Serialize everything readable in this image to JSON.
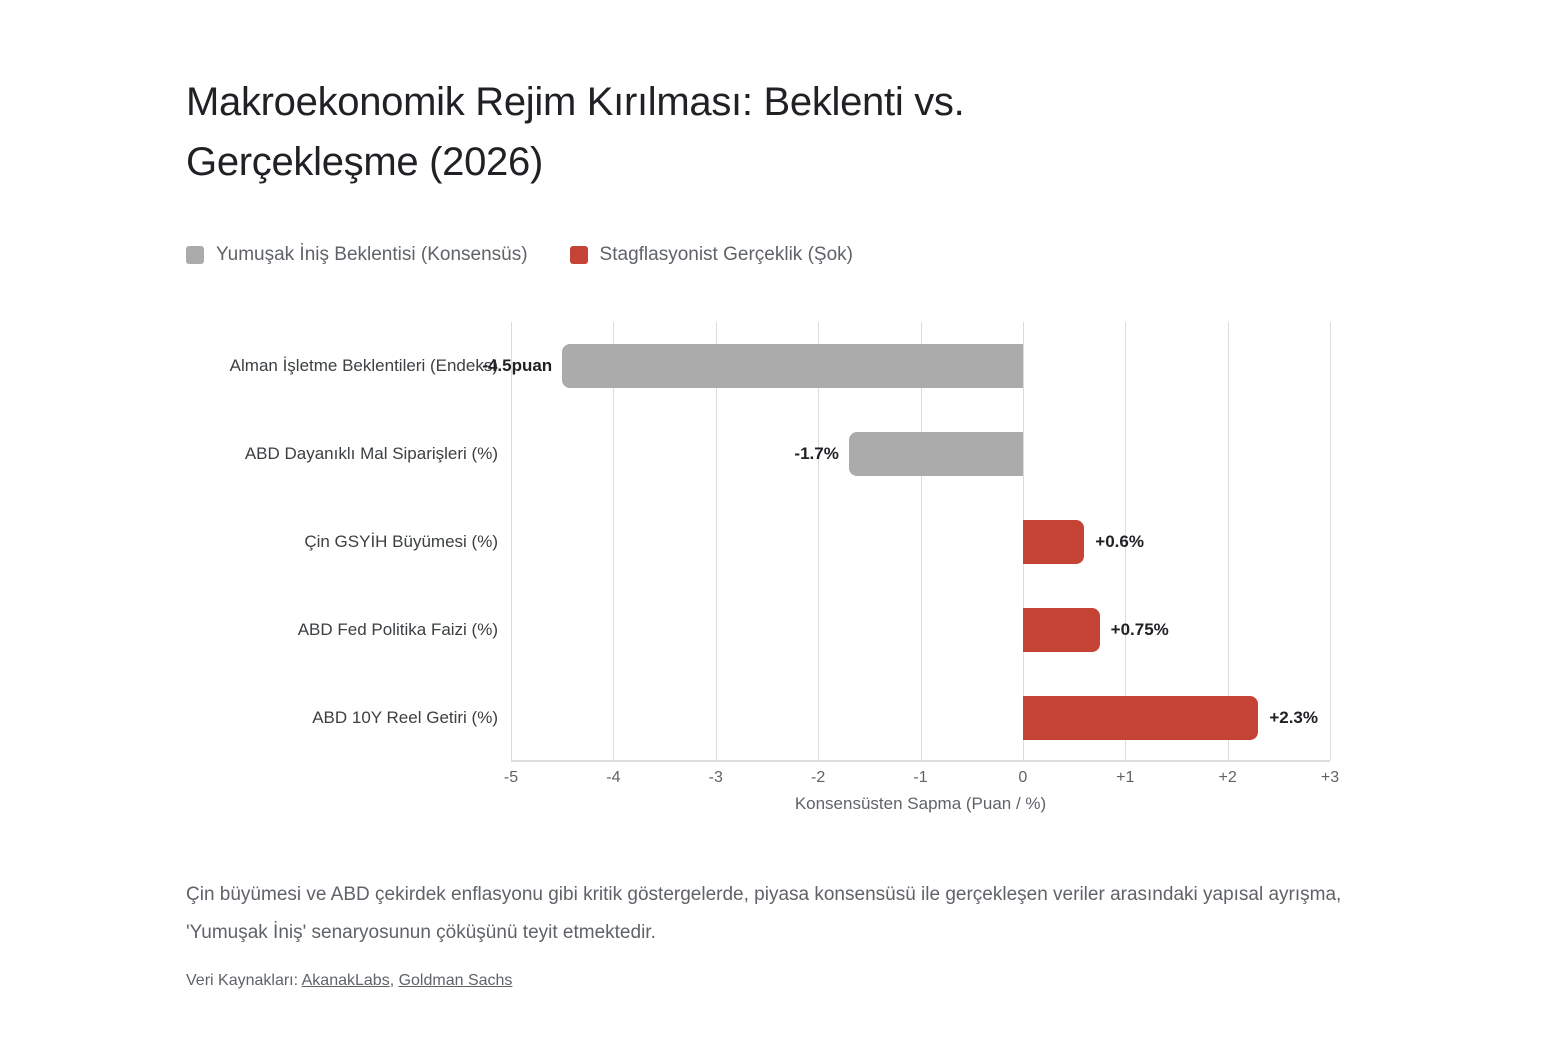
{
  "page": {
    "title": "Makroekonomik Rejim Kırılması: Beklenti vs. Gerçekleşme (2026)",
    "description": "Çin büyümesi ve ABD çekirdek enflasyonu gibi kritik göstergelerde, piyasa konsensüsü ile gerçekleşen veriler arasındaki yapısal ayrışma, 'Yumuşak İniş' senaryosunun çöküşünü teyit etmektedir.",
    "sources_label": "Veri Kaynakları: ",
    "sources_separator": ", ",
    "sources": [
      {
        "label": "AkanakLabs"
      },
      {
        "label": "Goldman Sachs"
      }
    ]
  },
  "chart_data": {
    "type": "bar",
    "orientation": "horizontal",
    "title": "Makroekonomik Rejim Kırılması: Beklenti vs. Gerçekleşme (2026)",
    "xlabel": "Konsensüsten Sapma (Puan / %)",
    "xlim": [
      -5,
      3
    ],
    "grid": true,
    "legend_position": "top",
    "series": [
      {
        "name": "Yumuşak İniş Beklentisi (Konsensüs)",
        "color": "#ababab"
      },
      {
        "name": "Stagflasyonist Gerçeklik (Şok)",
        "color": "#c54334"
      }
    ],
    "legend": [
      {
        "label": "Yumuşak İniş Beklentisi (Konsensüs)",
        "color": "#ababab"
      },
      {
        "label": "Stagflasyonist Gerçeklik (Şok)",
        "color": "#c54334"
      }
    ],
    "categories": [
      "Alman İşletme Beklentileri (Endeks)",
      "ABD Dayanıklı Mal Siparişleri (%)",
      "Çin GSYİH Büyümesi (%)",
      "ABD Fed Politika Faizi (%)",
      "ABD 10Y Reel Getiri (%)"
    ],
    "bars": [
      {
        "category": "Alman İşletme Beklentileri (Endeks)",
        "value": -4.5,
        "label": "-4.5puan",
        "series": 0
      },
      {
        "category": "ABD Dayanıklı Mal Siparişleri (%)",
        "value": -1.7,
        "label": "-1.7%",
        "series": 0
      },
      {
        "category": "Çin GSYİH Büyümesi (%)",
        "value": 0.6,
        "label": "+0.6%",
        "series": 1
      },
      {
        "category": "ABD Fed Politika Faizi (%)",
        "value": 0.75,
        "label": "+0.75%",
        "series": 1
      },
      {
        "category": "ABD 10Y Reel Getiri (%)",
        "value": 2.3,
        "label": "+2.3%",
        "series": 1
      }
    ],
    "xticks": [
      {
        "value": -5,
        "label": "-5"
      },
      {
        "value": -4,
        "label": "-4"
      },
      {
        "value": -3,
        "label": "-3"
      },
      {
        "value": -2,
        "label": "-2"
      },
      {
        "value": -1,
        "label": "-1"
      },
      {
        "value": 0,
        "label": "0"
      },
      {
        "value": 1,
        "label": "+1"
      },
      {
        "value": 2,
        "label": "+2"
      },
      {
        "value": 3,
        "label": "+3"
      }
    ],
    "colors": {
      "gridline": "#dadce0",
      "value_label_text": "#202124",
      "category_label_text": "#3c4043",
      "tick_text": "#5f6368"
    }
  }
}
